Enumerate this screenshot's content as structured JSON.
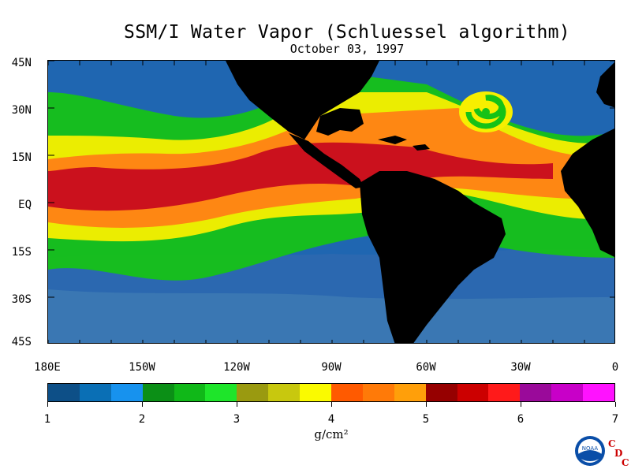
{
  "title": "SSM/I Water Vapor (Schluessel algorithm)",
  "subtitle": "October 03, 1997",
  "lat_labels": [
    "45N",
    "30N",
    "15N",
    "EQ",
    "15S",
    "30S",
    "45S"
  ],
  "lon_labels": [
    "180E",
    "150W",
    "120W",
    "90W",
    "60W",
    "30W",
    "0"
  ],
  "colorbar": {
    "tick_labels": [
      "1",
      "2",
      "3",
      "4",
      "5",
      "6",
      "7"
    ],
    "units": "g/cm²",
    "colors": [
      "#0d4f87",
      "#0a6fb5",
      "#1792ee",
      "#0b8f16",
      "#10b818",
      "#1ee52a",
      "#9a9a10",
      "#c8c80e",
      "#fafa00",
      "#ff5a00",
      "#ff7a08",
      "#ff9f0a",
      "#960000",
      "#cc0000",
      "#ff1a1a",
      "#9a0a9a",
      "#c800c8",
      "#ff12ff"
    ]
  },
  "map": {
    "ocean_colors": {
      "dry": "#1f66b1",
      "cold": "#3b78b3",
      "mid": "#16c217",
      "moist": "#f7ef00",
      "wet": "#ff8214",
      "vwet": "#c80b1e"
    },
    "land_color": "#000000"
  },
  "logo": {
    "text": "NOAA",
    "letters": [
      "C",
      "D",
      "C"
    ]
  }
}
